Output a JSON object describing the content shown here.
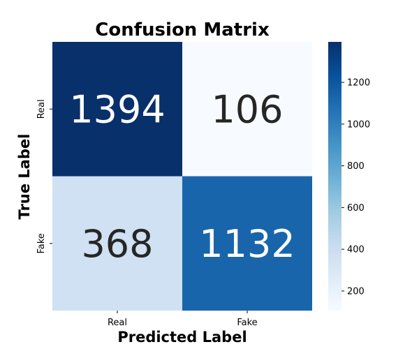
{
  "chart_data": {
    "type": "heatmap",
    "title": "Confusion Matrix",
    "xlabel": "Predicted Label",
    "ylabel": "True Label",
    "row_labels": [
      "Real",
      "Fake"
    ],
    "col_labels": [
      "Real",
      "Fake"
    ],
    "values": [
      [
        1394,
        106
      ],
      [
        368,
        1132
      ]
    ],
    "colormap": "Blues",
    "colorbar": {
      "min": 106,
      "max": 1394,
      "ticks": [
        200,
        400,
        600,
        800,
        1000,
        1200
      ]
    },
    "colors": {
      "light": "#f7fbff",
      "dark": "#08306b",
      "text_dark": "#262626",
      "text_light": "#ffffff"
    }
  }
}
